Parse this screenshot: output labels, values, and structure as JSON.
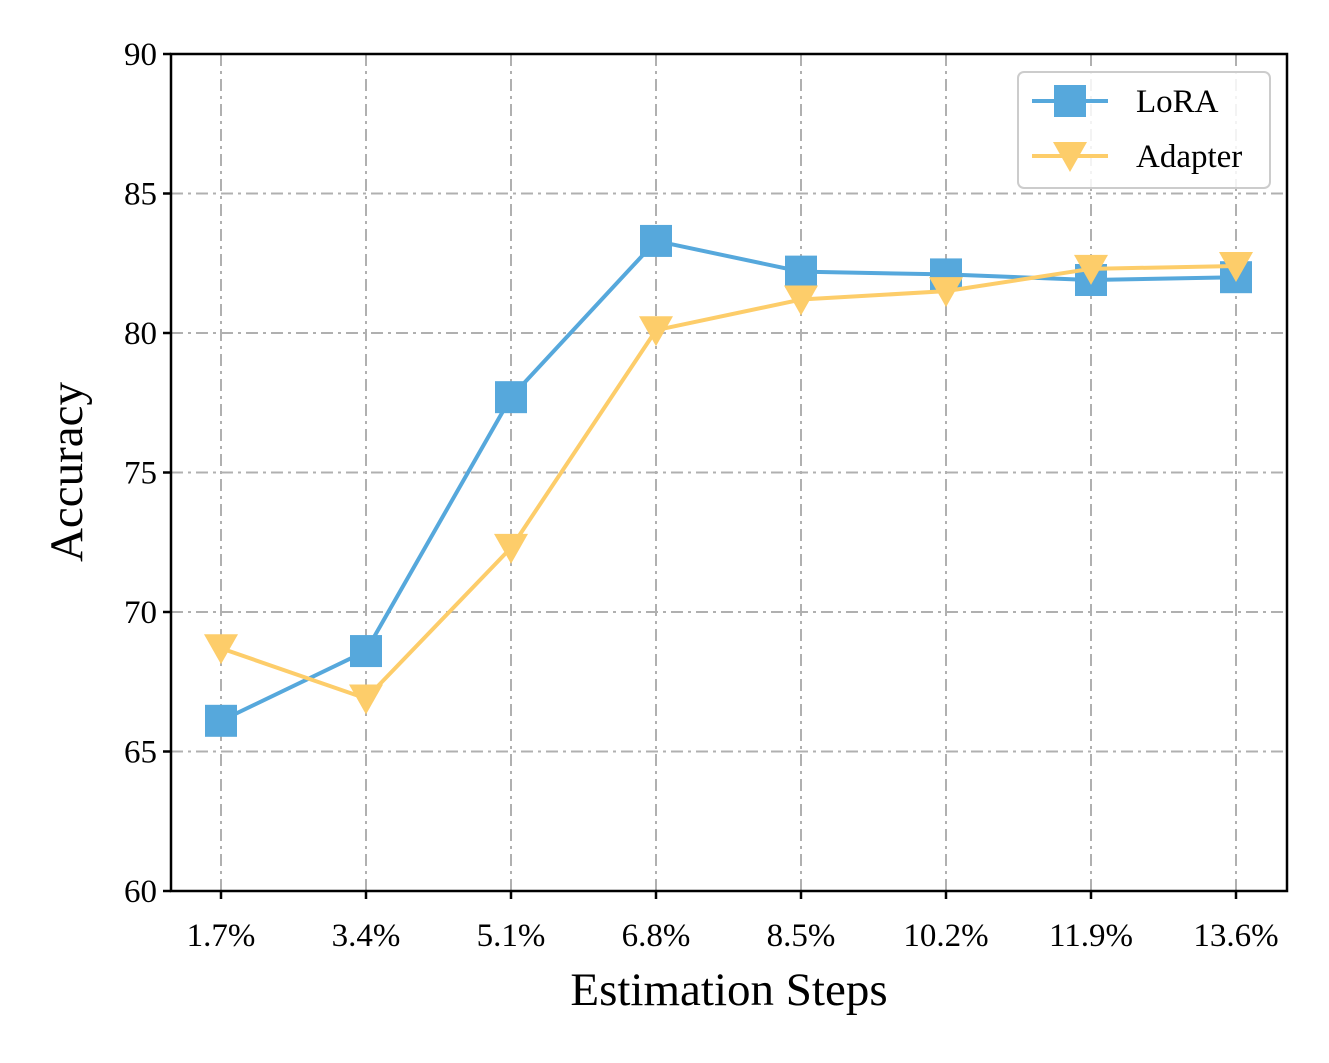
{
  "chart_data": {
    "type": "line",
    "title": "",
    "xlabel": "Estimation Steps",
    "ylabel": "Accuracy",
    "categories": [
      "1.7%",
      "3.4%",
      "5.1%",
      "6.8%",
      "8.5%",
      "10.2%",
      "11.9%",
      "13.6%"
    ],
    "ylim": [
      60,
      90
    ],
    "yticks": [
      "60",
      "65",
      "70",
      "75",
      "80",
      "85",
      "90"
    ],
    "grid": true,
    "legend_position": "top-right",
    "series": [
      {
        "name": "LoRA",
        "marker": "square",
        "color": "#56a8dc",
        "values": [
          66.1,
          68.6,
          77.7,
          83.3,
          82.2,
          82.1,
          81.9,
          82.0
        ]
      },
      {
        "name": "Adapter",
        "marker": "triangle-down",
        "color": "#fdcd6a",
        "values": [
          68.7,
          66.9,
          72.3,
          80.1,
          81.2,
          81.5,
          82.3,
          82.4
        ]
      }
    ]
  }
}
